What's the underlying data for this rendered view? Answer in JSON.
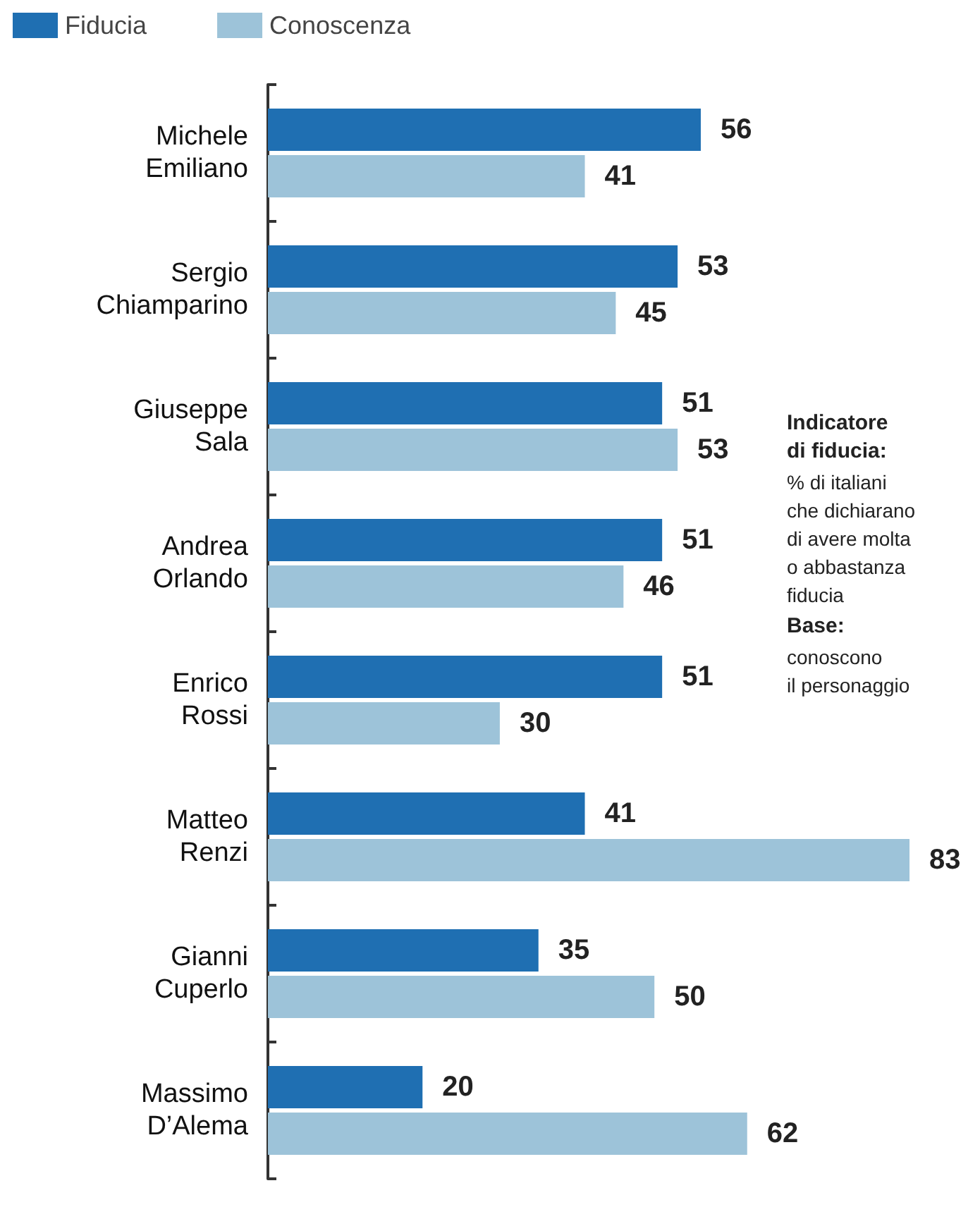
{
  "chart_data": {
    "type": "bar",
    "orientation": "horizontal",
    "categories": [
      "Michele\nEmiliano",
      "Sergio\nChiamparino",
      "Giuseppe\nSala",
      "Andrea\nOrlando",
      "Enrico\nRossi",
      "Matteo\nRenzi",
      "Gianni\nCuperlo",
      "Massimo\nD’Alema"
    ],
    "series": [
      {
        "name": "Fiducia",
        "color": "#1f6fb2",
        "values": [
          56,
          53,
          51,
          51,
          51,
          41,
          35,
          20
        ]
      },
      {
        "name": "Conoscenza",
        "color": "#9dc3d9",
        "values": [
          41,
          45,
          53,
          46,
          30,
          83,
          50,
          62
        ]
      }
    ],
    "data_labels": true,
    "legend": "top left",
    "annotations": [
      "Indicatore\ndi fiducia:",
      "% di italiani\nche dichiarano\ndi avere molta\no abbastanza\nfiducia",
      "Base:",
      "conoscono\nil personaggio"
    ]
  }
}
